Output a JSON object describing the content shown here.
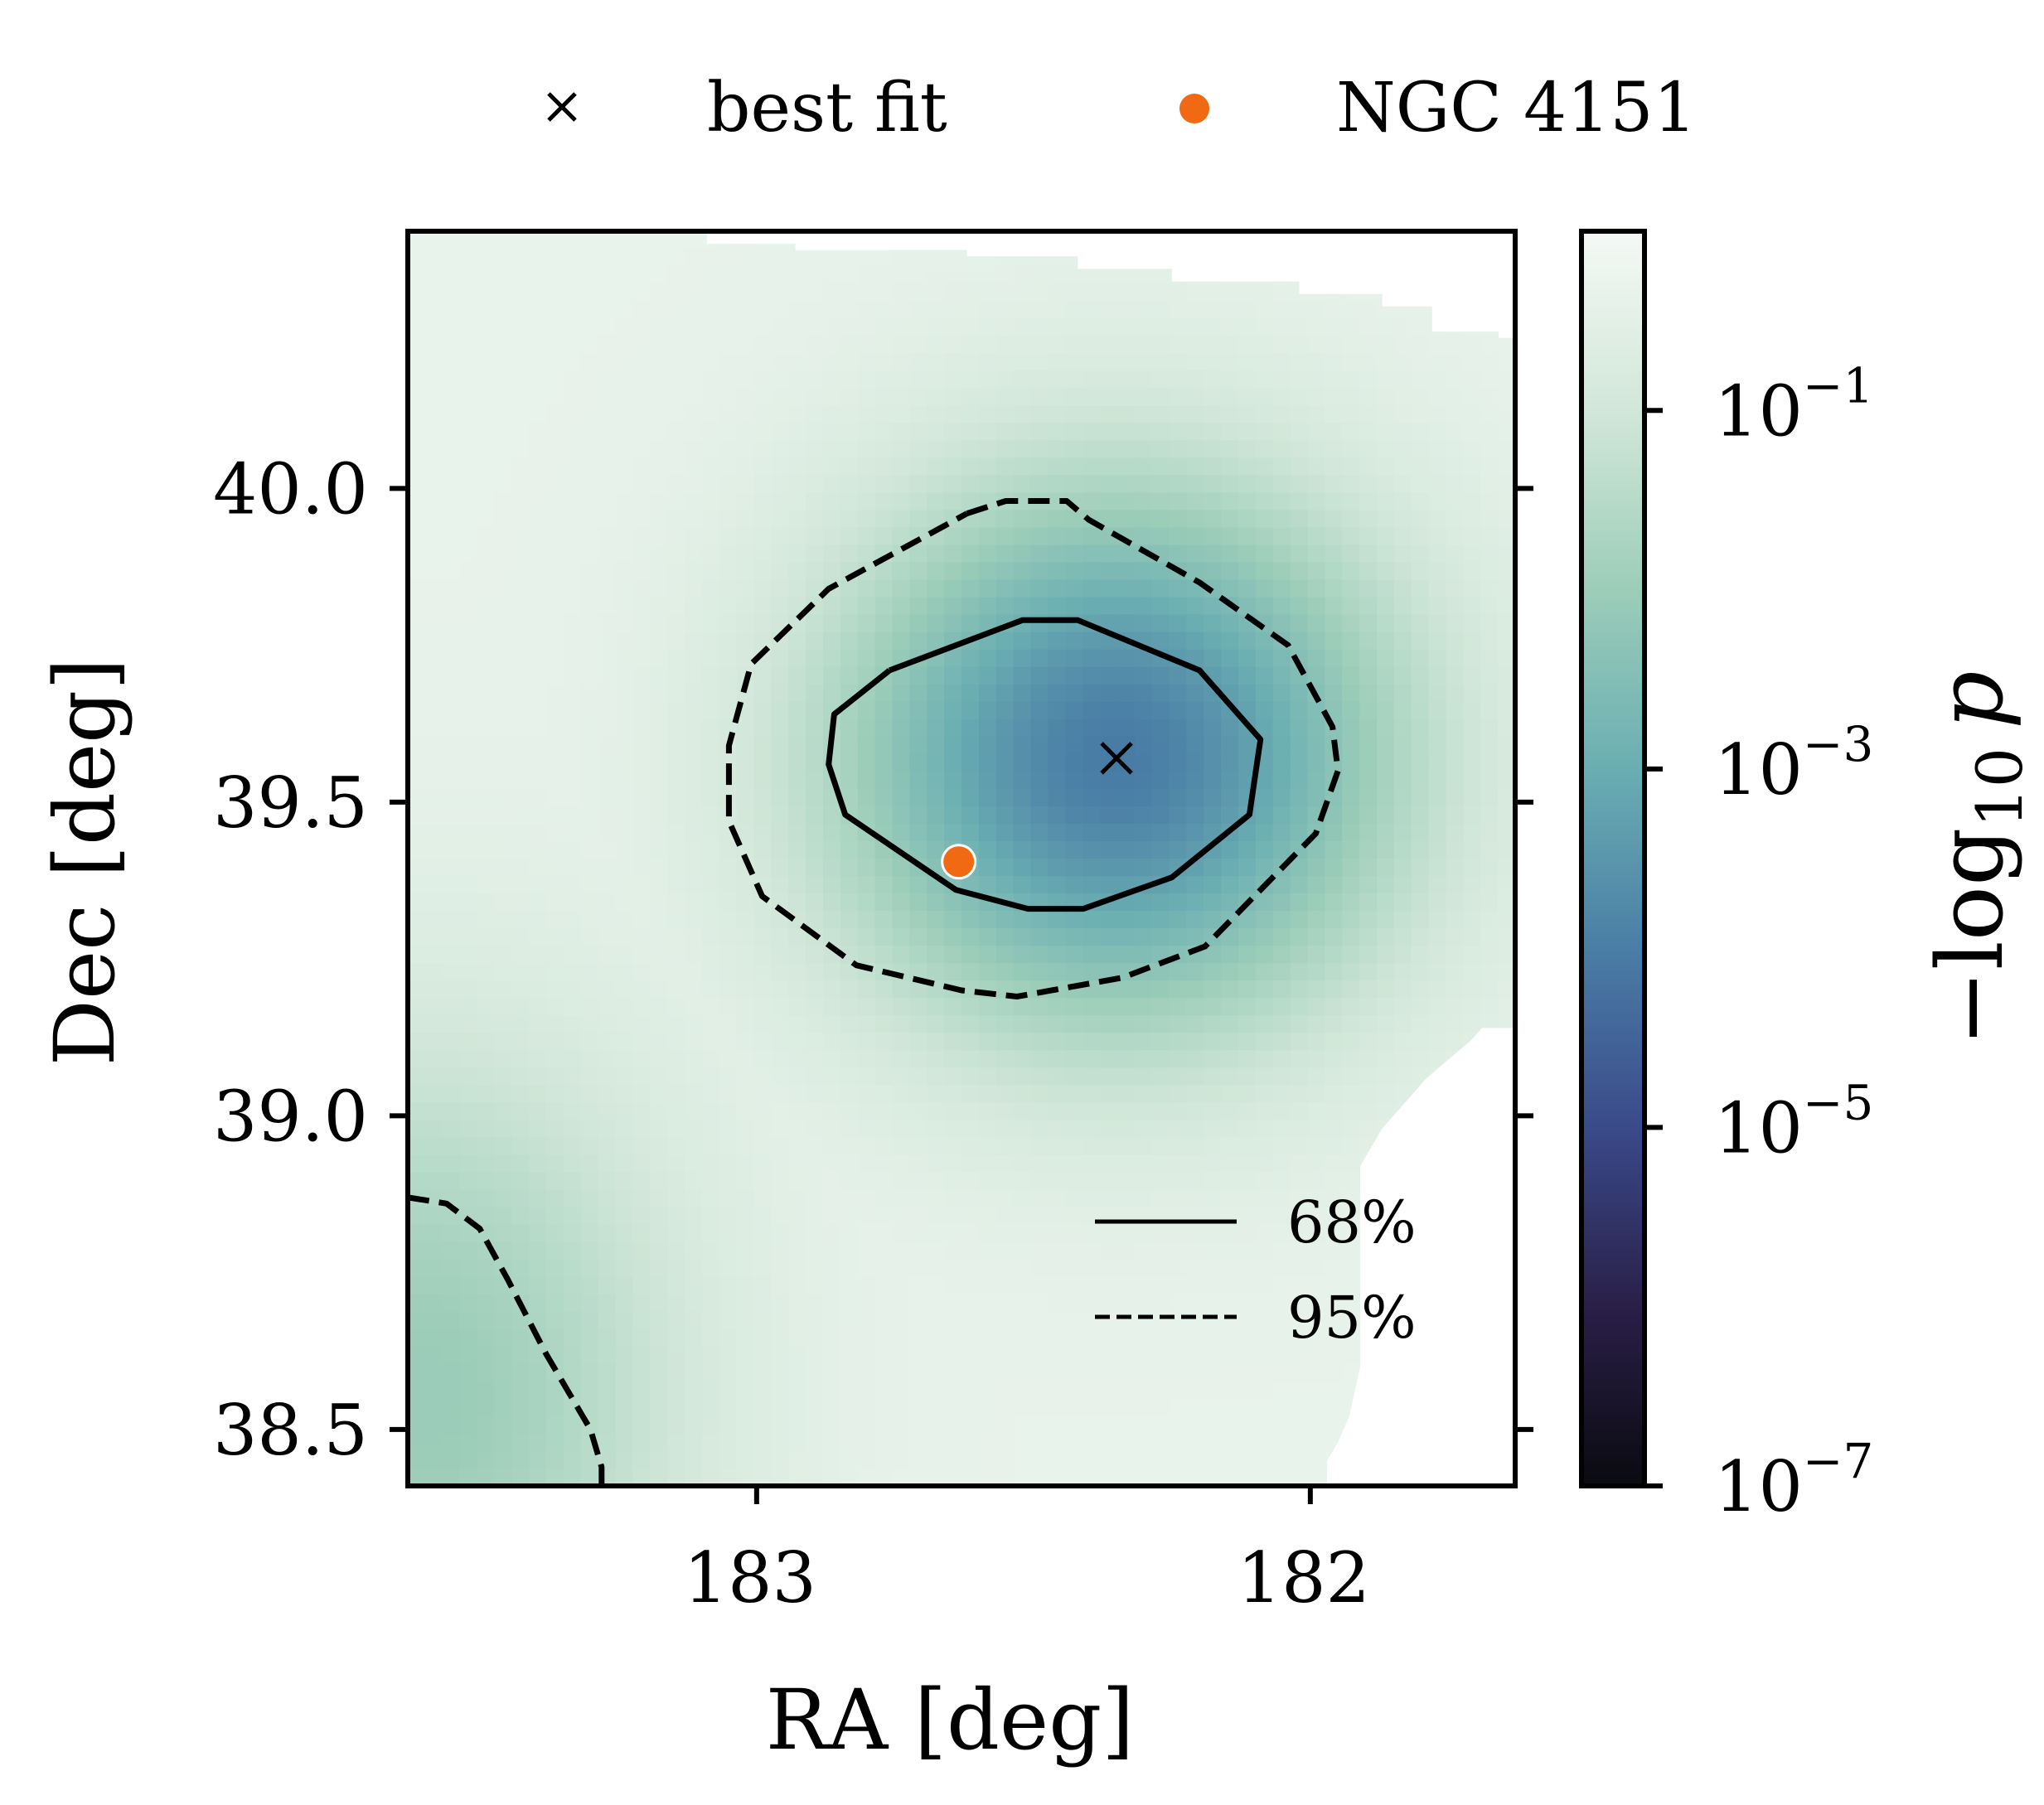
{
  "chart_data": {
    "type": "heatmap",
    "title": "",
    "xlabel": "RA [deg]",
    "ylabel": "Dec [deg]",
    "xlim": [
      183.63,
      181.63
    ],
    "ylim": [
      38.41,
      40.41
    ],
    "x_inverted": true,
    "x_ticks": [
      {
        "value": 183,
        "label": "183"
      },
      {
        "value": 182,
        "label": "182"
      }
    ],
    "y_ticks": [
      {
        "value": 40.0,
        "label": "40.0"
      },
      {
        "value": 39.5,
        "label": "39.5"
      },
      {
        "value": 39.0,
        "label": "39.0"
      },
      {
        "value": 38.5,
        "label": "38.5"
      }
    ],
    "colorbar": {
      "label_prefix": "−log",
      "label_subscript": "10",
      "label_var": "p",
      "scale": "log",
      "lim_exponent": [
        -7,
        0
      ],
      "ticks": [
        {
          "base": "10",
          "exp": "−1",
          "exponent": -1
        },
        {
          "base": "10",
          "exp": "−3",
          "exponent": -3
        },
        {
          "base": "10",
          "exp": "−5",
          "exponent": -5
        },
        {
          "base": "10",
          "exp": "−7",
          "exponent": -7
        }
      ],
      "colormap": [
        "#0a0a10",
        "#2a1f48",
        "#3a4a8a",
        "#4a7ea6",
        "#6aaeb2",
        "#9ccdb9",
        "#d2e7d9",
        "#f4f9f5"
      ]
    },
    "field": {
      "peak": {
        "ra": 182.35,
        "dec": 39.57,
        "exponent": -3.7
      },
      "secondary": {
        "ra": 183.6,
        "dec": 38.55,
        "exponent": -1.7
      }
    },
    "points": [
      {
        "name": "best fit",
        "ra": 182.35,
        "dec": 39.57,
        "marker": "x",
        "color": "#000000"
      },
      {
        "name": "NGC 4151",
        "ra": 182.635,
        "dec": 39.405,
        "marker": "o",
        "color": "#f16913"
      }
    ],
    "contours": [
      {
        "level": "68%",
        "style": "solid",
        "path": [
          [
            182.76,
            39.71
          ],
          [
            182.52,
            39.79
          ],
          [
            182.42,
            39.79
          ],
          [
            182.2,
            39.71
          ],
          [
            182.09,
            39.6
          ],
          [
            182.11,
            39.48
          ],
          [
            182.25,
            39.38
          ],
          [
            182.41,
            39.33
          ],
          [
            182.51,
            39.33
          ],
          [
            182.64,
            39.36
          ],
          [
            182.84,
            39.48
          ],
          [
            182.87,
            39.56
          ],
          [
            182.86,
            39.64
          ],
          [
            182.76,
            39.71
          ]
        ]
      },
      {
        "level": "95%",
        "style": "dashed",
        "path": [
          [
            182.62,
            39.96
          ],
          [
            182.55,
            39.98
          ],
          [
            182.44,
            39.98
          ],
          [
            182.4,
            39.95
          ],
          [
            182.2,
            39.85
          ],
          [
            182.04,
            39.75
          ],
          [
            181.96,
            39.62
          ],
          [
            181.95,
            39.55
          ],
          [
            181.99,
            39.45
          ],
          [
            182.19,
            39.27
          ],
          [
            182.34,
            39.22
          ],
          [
            182.53,
            39.19
          ],
          [
            182.63,
            39.2
          ],
          [
            182.82,
            39.24
          ],
          [
            182.99,
            39.35
          ],
          [
            183.05,
            39.47
          ],
          [
            183.05,
            39.59
          ],
          [
            183.01,
            39.72
          ],
          [
            182.87,
            39.84
          ],
          [
            182.62,
            39.96
          ]
        ]
      },
      {
        "level": "95%",
        "style": "dashed",
        "path": [
          [
            183.63,
            38.87
          ],
          [
            183.56,
            38.86
          ],
          [
            183.5,
            38.82
          ],
          [
            183.45,
            38.74
          ],
          [
            183.38,
            38.62
          ],
          [
            183.3,
            38.5
          ],
          [
            183.28,
            38.44
          ],
          [
            183.28,
            38.41
          ]
        ]
      }
    ],
    "no_data_regions": [
      {
        "name": "top-right",
        "path": [
          [
            183.09,
            40.41
          ],
          [
            183.09,
            40.39
          ],
          [
            182.93,
            40.39
          ],
          [
            182.93,
            40.38
          ],
          [
            182.62,
            40.38
          ],
          [
            182.62,
            40.37
          ],
          [
            182.42,
            40.37
          ],
          [
            182.42,
            40.35
          ],
          [
            182.25,
            40.35
          ],
          [
            182.25,
            40.33
          ],
          [
            182.02,
            40.33
          ],
          [
            182.02,
            40.31
          ],
          [
            181.87,
            40.31
          ],
          [
            181.87,
            40.29
          ],
          [
            181.78,
            40.29
          ],
          [
            181.78,
            40.25
          ],
          [
            181.66,
            40.25
          ],
          [
            181.66,
            40.24
          ],
          [
            181.63,
            40.24
          ],
          [
            181.63,
            40.41
          ]
        ]
      },
      {
        "name": "bottom-right",
        "path": [
          [
            181.63,
            39.14
          ],
          [
            181.69,
            39.14
          ],
          [
            181.71,
            39.12
          ],
          [
            181.75,
            39.09
          ],
          [
            181.79,
            39.06
          ],
          [
            181.83,
            39.02
          ],
          [
            181.87,
            38.98
          ],
          [
            181.91,
            38.92
          ],
          [
            181.91,
            38.8
          ],
          [
            181.91,
            38.6
          ],
          [
            181.93,
            38.52
          ],
          [
            181.95,
            38.48
          ],
          [
            181.97,
            38.45
          ],
          [
            181.97,
            38.41
          ],
          [
            181.63,
            38.41
          ]
        ]
      }
    ]
  },
  "legend_top": [
    {
      "marker": "x",
      "label": "best fit",
      "color": "#000000"
    },
    {
      "marker": "o",
      "label": "NGC 4151",
      "color": "#f16913"
    }
  ],
  "legend_inner": [
    {
      "style": "solid",
      "label": "68%"
    },
    {
      "style": "dashed",
      "label": "95%"
    }
  ]
}
